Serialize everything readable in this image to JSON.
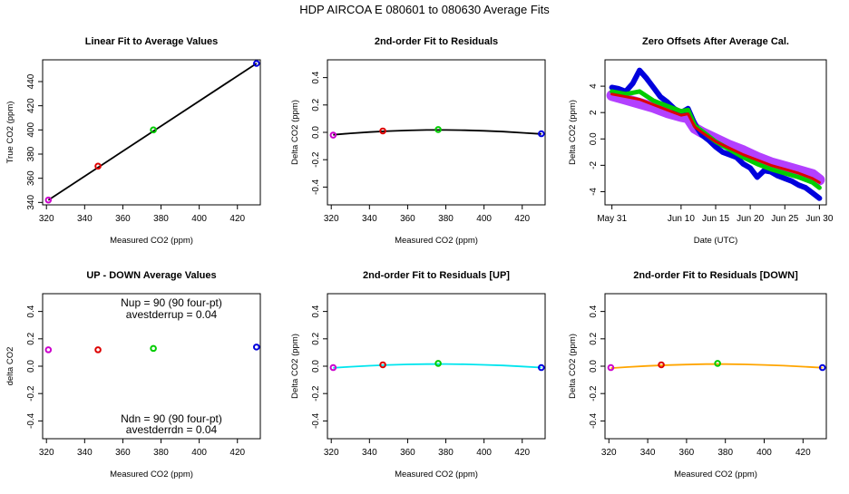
{
  "figure": {
    "title": "HDP    AIRCOA E    080601 to 080630    Average Fits"
  },
  "colors": {
    "point_magenta": "#cc00cc",
    "point_red": "#dd0000",
    "point_green": "#00cc00",
    "point_blue": "#0000dd",
    "fit_black": "#000000",
    "fit_up": "#00e5ee",
    "fit_down": "#ffa500",
    "band_purple": "#9a00ff"
  },
  "chart_data": [
    {
      "id": "p1",
      "type": "line",
      "title": "Linear Fit to Average Values",
      "xlabel": "Measured CO2 (ppm)",
      "ylabel": "True CO2 (ppm)",
      "xlim": [
        318,
        432
      ],
      "ylim": [
        338,
        458
      ],
      "xticks": [
        320,
        340,
        360,
        380,
        400,
        420
      ],
      "yticks": [
        340,
        360,
        380,
        400,
        420,
        440
      ],
      "points": [
        {
          "x": 321,
          "y": 342,
          "color": "#cc00cc"
        },
        {
          "x": 347,
          "y": 370,
          "color": "#dd0000"
        },
        {
          "x": 376,
          "y": 400,
          "color": "#00cc00"
        },
        {
          "x": 430,
          "y": 455,
          "color": "#0000dd"
        }
      ],
      "fit": {
        "x": [
          321,
          430
        ],
        "y": [
          342,
          455
        ],
        "color": "#000000"
      }
    },
    {
      "id": "p2",
      "type": "line",
      "title": "2nd-order Fit to Residuals",
      "xlabel": "Measured CO2 (ppm)",
      "ylabel": "Delta CO2 (ppm)",
      "xlim": [
        318,
        432
      ],
      "ylim": [
        -0.53,
        0.53
      ],
      "xticks": [
        320,
        340,
        360,
        380,
        400,
        420
      ],
      "yticks": [
        -0.4,
        -0.2,
        0.0,
        0.2,
        0.4
      ],
      "points": [
        {
          "x": 321,
          "y": -0.02,
          "color": "#cc00cc"
        },
        {
          "x": 347,
          "y": 0.01,
          "color": "#dd0000"
        },
        {
          "x": 376,
          "y": 0.02,
          "color": "#00cc00"
        },
        {
          "x": 430,
          "y": -0.01,
          "color": "#0000dd"
        }
      ],
      "fit": {
        "x": [
          321,
          330,
          340,
          350,
          360,
          370,
          380,
          390,
          400,
          410,
          420,
          430
        ],
        "y": [
          -0.018,
          -0.007,
          0.002,
          0.009,
          0.014,
          0.017,
          0.017,
          0.015,
          0.011,
          0.005,
          -0.003,
          -0.012
        ],
        "color": "#000000"
      }
    },
    {
      "id": "p3",
      "type": "scatter",
      "title": "Zero Offsets After Average Cal.",
      "xlabel": "Date (UTC)",
      "ylabel": "Delta CO2 (ppm)",
      "xlim": [
        "2008-05-30",
        "2008-07-01"
      ],
      "ylim": [
        -5.0,
        6.0
      ],
      "xticks": [
        {
          "date": "2008-05-31",
          "label": "May 31"
        },
        {
          "date": "2008-06-10",
          "label": "Jun 10"
        },
        {
          "date": "2008-06-15",
          "label": "Jun 15"
        },
        {
          "date": "2008-06-20",
          "label": "Jun 20"
        },
        {
          "date": "2008-06-25",
          "label": "Jun 25"
        },
        {
          "date": "2008-06-30",
          "label": "Jun 30"
        }
      ],
      "yticks": [
        -4,
        -2,
        0,
        2,
        4
      ],
      "series": [
        {
          "color": "#9a00ff",
          "points": [
            [
              "2008-05-31",
              3.3
            ],
            [
              "2008-06-02",
              3.0
            ],
            [
              "2008-06-04",
              2.7
            ],
            [
              "2008-06-06",
              2.4
            ],
            [
              "2008-06-08",
              2.0
            ],
            [
              "2008-06-10",
              1.7
            ],
            [
              "2008-06-11",
              1.6
            ],
            [
              "2008-06-12",
              0.8
            ],
            [
              "2008-06-13",
              0.5
            ],
            [
              "2008-06-15",
              0.0
            ],
            [
              "2008-06-17",
              -0.5
            ],
            [
              "2008-06-19",
              -0.9
            ],
            [
              "2008-06-21",
              -1.4
            ],
            [
              "2008-06-23",
              -1.8
            ],
            [
              "2008-06-25",
              -2.1
            ],
            [
              "2008-06-27",
              -2.4
            ],
            [
              "2008-06-29",
              -2.7
            ],
            [
              "2008-06-30",
              -3.1
            ]
          ]
        },
        {
          "color": "#0000dd",
          "points": [
            [
              "2008-05-31",
              3.9
            ],
            [
              "2008-06-01",
              3.8
            ],
            [
              "2008-06-02",
              3.6
            ],
            [
              "2008-06-03",
              4.2
            ],
            [
              "2008-06-04",
              5.2
            ],
            [
              "2008-06-05",
              4.6
            ],
            [
              "2008-06-06",
              3.9
            ],
            [
              "2008-06-07",
              3.2
            ],
            [
              "2008-06-08",
              2.8
            ],
            [
              "2008-06-09",
              2.3
            ],
            [
              "2008-06-10",
              2.0
            ],
            [
              "2008-06-11",
              2.3
            ],
            [
              "2008-06-12",
              1.1
            ],
            [
              "2008-06-13",
              0.3
            ],
            [
              "2008-06-14",
              -0.1
            ],
            [
              "2008-06-15",
              -0.6
            ],
            [
              "2008-06-16",
              -1.0
            ],
            [
              "2008-06-17",
              -1.2
            ],
            [
              "2008-06-18",
              -1.4
            ],
            [
              "2008-06-19",
              -1.9
            ],
            [
              "2008-06-20",
              -2.2
            ],
            [
              "2008-06-21",
              -2.9
            ],
            [
              "2008-06-22",
              -2.4
            ],
            [
              "2008-06-23",
              -2.5
            ],
            [
              "2008-06-24",
              -2.8
            ],
            [
              "2008-06-25",
              -3.0
            ],
            [
              "2008-06-26",
              -3.2
            ],
            [
              "2008-06-27",
              -3.5
            ],
            [
              "2008-06-28",
              -3.7
            ],
            [
              "2008-06-29",
              -4.1
            ],
            [
              "2008-06-30",
              -4.5
            ]
          ]
        },
        {
          "color": "#00cc00",
          "points": [
            [
              "2008-05-31",
              3.6
            ],
            [
              "2008-06-02",
              3.4
            ],
            [
              "2008-06-04",
              3.6
            ],
            [
              "2008-06-06",
              2.9
            ],
            [
              "2008-06-08",
              2.5
            ],
            [
              "2008-06-10",
              2.1
            ],
            [
              "2008-06-11",
              2.2
            ],
            [
              "2008-06-12",
              1.0
            ],
            [
              "2008-06-13",
              0.6
            ],
            [
              "2008-06-15",
              -0.2
            ],
            [
              "2008-06-17",
              -0.8
            ],
            [
              "2008-06-19",
              -1.4
            ],
            [
              "2008-06-21",
              -1.9
            ],
            [
              "2008-06-23",
              -2.3
            ],
            [
              "2008-06-25",
              -2.6
            ],
            [
              "2008-06-27",
              -2.9
            ],
            [
              "2008-06-29",
              -3.3
            ],
            [
              "2008-06-30",
              -3.7
            ]
          ]
        },
        {
          "color": "#dd0000",
          "points": [
            [
              "2008-05-31",
              3.4
            ],
            [
              "2008-06-02",
              3.2
            ],
            [
              "2008-06-04",
              3.0
            ],
            [
              "2008-06-06",
              2.6
            ],
            [
              "2008-06-08",
              2.2
            ],
            [
              "2008-06-10",
              1.8
            ],
            [
              "2008-06-11",
              1.9
            ],
            [
              "2008-06-12",
              0.9
            ],
            [
              "2008-06-13",
              0.5
            ],
            [
              "2008-06-15",
              -0.2
            ],
            [
              "2008-06-17",
              -0.7
            ],
            [
              "2008-06-19",
              -1.2
            ],
            [
              "2008-06-21",
              -1.6
            ],
            [
              "2008-06-23",
              -2.0
            ],
            [
              "2008-06-25",
              -2.3
            ],
            [
              "2008-06-27",
              -2.6
            ],
            [
              "2008-06-29",
              -3.0
            ],
            [
              "2008-06-30",
              -3.3
            ]
          ]
        }
      ]
    },
    {
      "id": "p4",
      "type": "scatter",
      "title": "UP - DOWN Average Values",
      "xlabel": "Measured CO2 (ppm)",
      "ylabel": "delta CO2",
      "xlim": [
        318,
        432
      ],
      "ylim": [
        -0.53,
        0.53
      ],
      "xticks": [
        320,
        340,
        360,
        380,
        400,
        420
      ],
      "yticks": [
        -0.4,
        -0.2,
        0.0,
        0.2,
        0.4
      ],
      "points": [
        {
          "x": 321,
          "y": 0.12,
          "color": "#cc00cc"
        },
        {
          "x": 347,
          "y": 0.12,
          "color": "#dd0000"
        },
        {
          "x": 376,
          "y": 0.13,
          "color": "#00cc00"
        },
        {
          "x": 430,
          "y": 0.14,
          "color": "#0000dd"
        }
      ],
      "annotations": {
        "nup": "Nup = 90 (90 four-pt)",
        "avestderrup": "avestderrup =  0.04",
        "ndn": "Ndn = 90 (90 four-pt)",
        "avestderrdn": "avestderrdn =  0.04"
      }
    },
    {
      "id": "p5",
      "type": "line",
      "title": "2nd-order Fit to Residuals [UP]",
      "xlabel": "Measured CO2 (ppm)",
      "ylabel": "Delta CO2 (ppm)",
      "xlim": [
        318,
        432
      ],
      "ylim": [
        -0.53,
        0.53
      ],
      "xticks": [
        320,
        340,
        360,
        380,
        400,
        420
      ],
      "yticks": [
        -0.4,
        -0.2,
        0.0,
        0.2,
        0.4
      ],
      "points": [
        {
          "x": 321,
          "y": -0.01,
          "color": "#cc00cc"
        },
        {
          "x": 347,
          "y": 0.01,
          "color": "#dd0000"
        },
        {
          "x": 376,
          "y": 0.02,
          "color": "#00cc00"
        },
        {
          "x": 430,
          "y": -0.01,
          "color": "#0000dd"
        }
      ],
      "fit": {
        "x": [
          321,
          330,
          340,
          350,
          360,
          370,
          380,
          390,
          400,
          410,
          420,
          430
        ],
        "y": [
          -0.012,
          -0.004,
          0.003,
          0.009,
          0.013,
          0.015,
          0.016,
          0.014,
          0.01,
          0.005,
          -0.002,
          -0.01
        ],
        "color": "#00e5ee"
      }
    },
    {
      "id": "p6",
      "type": "line",
      "title": "2nd-order Fit to Residuals [DOWN]",
      "xlabel": "Measured CO2 (ppm)",
      "ylabel": "Delta CO2 (ppm)",
      "xlim": [
        318,
        432
      ],
      "ylim": [
        -0.53,
        0.53
      ],
      "xticks": [
        320,
        340,
        360,
        380,
        400,
        420
      ],
      "yticks": [
        -0.4,
        -0.2,
        0.0,
        0.2,
        0.4
      ],
      "points": [
        {
          "x": 321,
          "y": -0.01,
          "color": "#cc00cc"
        },
        {
          "x": 347,
          "y": 0.01,
          "color": "#dd0000"
        },
        {
          "x": 376,
          "y": 0.02,
          "color": "#00cc00"
        },
        {
          "x": 430,
          "y": -0.01,
          "color": "#0000dd"
        }
      ],
      "fit": {
        "x": [
          321,
          330,
          340,
          350,
          360,
          370,
          380,
          390,
          400,
          410,
          420,
          430
        ],
        "y": [
          -0.014,
          -0.006,
          0.002,
          0.008,
          0.012,
          0.015,
          0.015,
          0.013,
          0.009,
          0.004,
          -0.003,
          -0.011
        ],
        "color": "#ffa500"
      }
    }
  ]
}
